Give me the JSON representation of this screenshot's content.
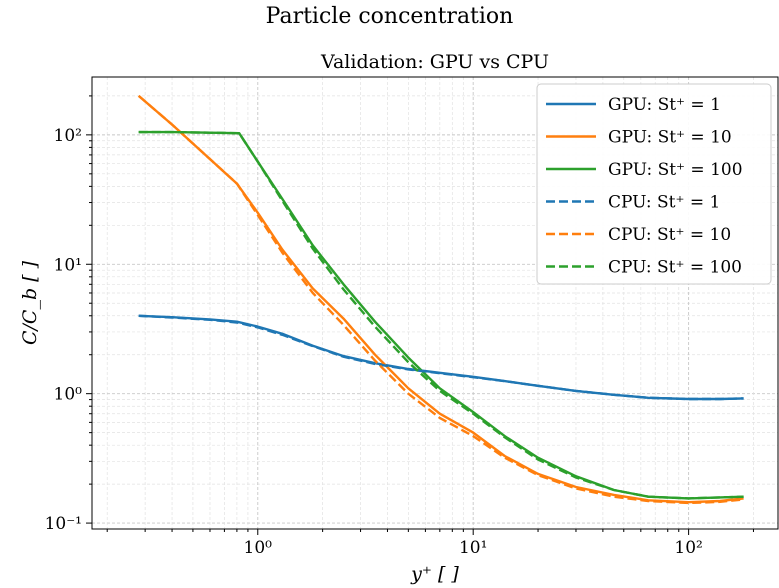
{
  "figure": {
    "suptitle": "Particle concentration"
  },
  "chart_data": {
    "type": "line",
    "title": "Validation: GPU vs CPU",
    "xlabel": "y⁺ [ ]",
    "ylabel": "C/C_b [ ]",
    "xscale": "log",
    "yscale": "log",
    "xlim": [
      0.17,
      260
    ],
    "ylim": [
      0.09,
      280
    ],
    "xticks": [
      {
        "value": 1,
        "label": "10⁰"
      },
      {
        "value": 10,
        "label": "10¹"
      },
      {
        "value": 100,
        "label": "10²"
      }
    ],
    "yticks": [
      {
        "value": 0.1,
        "label": "10⁻¹"
      },
      {
        "value": 1,
        "label": "10⁰"
      },
      {
        "value": 10,
        "label": "10¹"
      },
      {
        "value": 100,
        "label": "10²"
      }
    ],
    "grid": true,
    "legend_position": "top-right",
    "colors": {
      "blue": "#1f77b4",
      "orange": "#ff7f0e",
      "green": "#2ca02c"
    },
    "series": [
      {
        "name": "GPU: St⁺ = 1",
        "color": "#1f77b4",
        "style": "solid",
        "points": [
          [
            0.28,
            4.0
          ],
          [
            0.4,
            3.9
          ],
          [
            0.6,
            3.75
          ],
          [
            0.8,
            3.6
          ],
          [
            1.0,
            3.3
          ],
          [
            1.3,
            2.9
          ],
          [
            1.8,
            2.35
          ],
          [
            2.5,
            1.95
          ],
          [
            3.5,
            1.72
          ],
          [
            5,
            1.55
          ],
          [
            7,
            1.45
          ],
          [
            10,
            1.35
          ],
          [
            14,
            1.25
          ],
          [
            20,
            1.15
          ],
          [
            30,
            1.05
          ],
          [
            45,
            0.98
          ],
          [
            65,
            0.93
          ],
          [
            100,
            0.91
          ],
          [
            140,
            0.91
          ],
          [
            180,
            0.92
          ]
        ]
      },
      {
        "name": "GPU: St⁺ = 10",
        "color": "#ff7f0e",
        "style": "solid",
        "points": [
          [
            0.28,
            200
          ],
          [
            0.4,
            120
          ],
          [
            0.6,
            65
          ],
          [
            0.8,
            42
          ],
          [
            1.0,
            25
          ],
          [
            1.3,
            13
          ],
          [
            1.8,
            6.5
          ],
          [
            2.5,
            3.8
          ],
          [
            3.5,
            2.0
          ],
          [
            5,
            1.1
          ],
          [
            7,
            0.7
          ],
          [
            10,
            0.5
          ],
          [
            14,
            0.33
          ],
          [
            20,
            0.24
          ],
          [
            30,
            0.19
          ],
          [
            45,
            0.165
          ],
          [
            65,
            0.15
          ],
          [
            100,
            0.145
          ],
          [
            140,
            0.148
          ],
          [
            180,
            0.155
          ]
        ]
      },
      {
        "name": "GPU: St⁺ = 100",
        "color": "#2ca02c",
        "style": "solid",
        "points": [
          [
            0.28,
            105
          ],
          [
            0.4,
            105
          ],
          [
            0.6,
            104
          ],
          [
            0.82,
            103
          ],
          [
            1.0,
            62
          ],
          [
            1.3,
            32
          ],
          [
            1.8,
            14
          ],
          [
            2.5,
            7.0
          ],
          [
            3.5,
            3.6
          ],
          [
            5,
            1.9
          ],
          [
            7,
            1.1
          ],
          [
            10,
            0.72
          ],
          [
            14,
            0.47
          ],
          [
            20,
            0.32
          ],
          [
            30,
            0.23
          ],
          [
            45,
            0.18
          ],
          [
            65,
            0.16
          ],
          [
            100,
            0.155
          ],
          [
            140,
            0.158
          ],
          [
            180,
            0.16
          ]
        ]
      },
      {
        "name": "CPU: St⁺ = 1",
        "color": "#1f77b4",
        "style": "dashed",
        "points": [
          [
            0.28,
            4.0
          ],
          [
            0.4,
            3.88
          ],
          [
            0.6,
            3.72
          ],
          [
            0.8,
            3.55
          ],
          [
            1.0,
            3.25
          ],
          [
            1.3,
            2.85
          ],
          [
            1.8,
            2.33
          ],
          [
            2.5,
            1.93
          ],
          [
            3.5,
            1.7
          ],
          [
            5,
            1.54
          ],
          [
            7,
            1.44
          ],
          [
            10,
            1.34
          ],
          [
            14,
            1.25
          ],
          [
            20,
            1.15
          ],
          [
            30,
            1.05
          ],
          [
            45,
            0.98
          ],
          [
            65,
            0.93
          ],
          [
            100,
            0.91
          ],
          [
            140,
            0.91
          ],
          [
            180,
            0.92
          ]
        ]
      },
      {
        "name": "CPU: St⁺ = 10",
        "color": "#ff7f0e",
        "style": "dashed",
        "points": [
          [
            0.28,
            200
          ],
          [
            0.4,
            120
          ],
          [
            0.6,
            65
          ],
          [
            0.8,
            42
          ],
          [
            1.0,
            24
          ],
          [
            1.3,
            12.3
          ],
          [
            1.8,
            6.0
          ],
          [
            2.5,
            3.4
          ],
          [
            3.5,
            1.8
          ],
          [
            5,
            1.0
          ],
          [
            7,
            0.65
          ],
          [
            10,
            0.47
          ],
          [
            14,
            0.32
          ],
          [
            20,
            0.235
          ],
          [
            30,
            0.185
          ],
          [
            45,
            0.16
          ],
          [
            65,
            0.148
          ],
          [
            100,
            0.143
          ],
          [
            140,
            0.146
          ],
          [
            180,
            0.152
          ]
        ]
      },
      {
        "name": "CPU: St⁺ = 100",
        "color": "#2ca02c",
        "style": "dashed",
        "points": [
          [
            0.28,
            105
          ],
          [
            0.4,
            105
          ],
          [
            0.6,
            104
          ],
          [
            0.82,
            103
          ],
          [
            1.0,
            62
          ],
          [
            1.3,
            31
          ],
          [
            1.8,
            13.2
          ],
          [
            2.5,
            6.4
          ],
          [
            3.5,
            3.3
          ],
          [
            5,
            1.75
          ],
          [
            7,
            1.05
          ],
          [
            10,
            0.7
          ],
          [
            14,
            0.46
          ],
          [
            20,
            0.31
          ],
          [
            30,
            0.225
          ],
          [
            45,
            0.18
          ],
          [
            65,
            0.16
          ],
          [
            100,
            0.155
          ],
          [
            140,
            0.158
          ],
          [
            180,
            0.16
          ]
        ]
      }
    ]
  }
}
